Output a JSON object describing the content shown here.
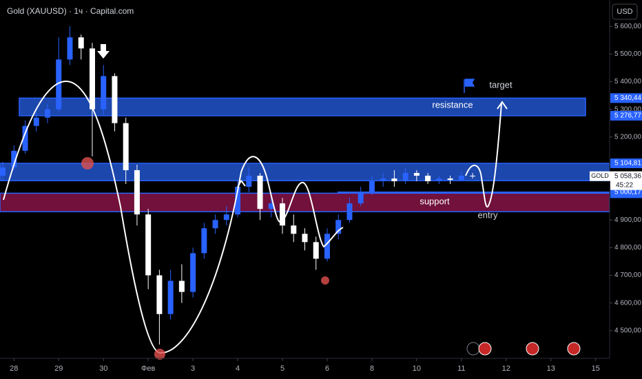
{
  "chart_data": {
    "type": "candlestick",
    "title": "Gold (XAUUSD) · 1ч · Capital.com",
    "currency": "USD",
    "symbol": "GOLD",
    "countdown": "45:22",
    "up_color": "#2962ff",
    "down_color": "#ffffff",
    "open": [
      5060,
      5090,
      5150,
      5240,
      5270,
      5300,
      5480,
      5560,
      5520,
      5300,
      5420,
      5250,
      5080,
      4920,
      4700,
      4560,
      4680,
      4640,
      4780,
      4870,
      4900,
      4920,
      5020,
      5060,
      4940,
      4960,
      4880,
      4850,
      4820,
      4760,
      4850,
      4900,
      4960,
      5000,
      5040,
      5050,
      5040,
      5070,
      5060,
      5040,
      5050,
      5045,
      5060
    ],
    "high": [
      5110,
      5170,
      5260,
      5290,
      5320,
      5560,
      5600,
      5570,
      5540,
      5460,
      5430,
      5270,
      5100,
      4940,
      4720,
      4720,
      4740,
      4800,
      4890,
      4920,
      4950,
      5040,
      5090,
      5070,
      5000,
      4980,
      4920,
      4870,
      4840,
      4870,
      4920,
      4980,
      5020,
      5060,
      5070,
      5080,
      5090,
      5080,
      5070,
      5060,
      5060,
      5075,
      5070
    ],
    "low": [
      5040,
      5080,
      5140,
      5220,
      5250,
      5290,
      5460,
      5480,
      5130,
      5280,
      5220,
      5030,
      4880,
      4650,
      4450,
      4540,
      4600,
      4620,
      4760,
      4850,
      4880,
      4910,
      5000,
      4900,
      4910,
      4850,
      4820,
      4790,
      4720,
      4750,
      4830,
      4890,
      4950,
      4990,
      5020,
      5020,
      5030,
      5040,
      5030,
      5030,
      5030,
      5040,
      5050
    ],
    "close": [
      5090,
      5150,
      5240,
      5270,
      5300,
      5480,
      5560,
      5520,
      5300,
      5420,
      5250,
      5080,
      4920,
      4700,
      4560,
      4680,
      4640,
      4780,
      4870,
      4900,
      4920,
      5020,
      5060,
      4940,
      4960,
      4880,
      4850,
      4820,
      4760,
      4850,
      4900,
      4960,
      5000,
      5040,
      5050,
      5040,
      5070,
      5060,
      5040,
      5050,
      5045,
      5060,
      5058.36
    ],
    "x": [
      -1,
      0,
      1,
      2,
      3,
      4,
      5,
      6,
      7,
      8,
      9,
      10,
      11,
      12,
      13,
      14,
      15,
      16,
      17,
      18,
      19,
      20,
      21,
      22,
      23,
      24,
      25,
      26,
      27,
      28,
      29,
      30,
      31,
      32,
      33,
      34,
      35,
      36,
      37,
      38,
      39,
      40,
      41
    ],
    "xlim": [
      -1.25,
      53.25
    ],
    "xticks": [
      {
        "value": 0,
        "label": "28"
      },
      {
        "value": 4,
        "label": "29"
      },
      {
        "value": 8,
        "label": "30"
      },
      {
        "value": 12,
        "label": "Фев"
      },
      {
        "value": 16,
        "label": "3"
      },
      {
        "value": 20,
        "label": "4"
      },
      {
        "value": 24,
        "label": "5"
      },
      {
        "value": 28,
        "label": "6"
      },
      {
        "value": 32,
        "label": "8"
      },
      {
        "value": 36,
        "label": "10"
      },
      {
        "value": 40,
        "label": "11"
      },
      {
        "value": 44,
        "label": "12"
      },
      {
        "value": 48,
        "label": "13"
      },
      {
        "value": 52,
        "label": "15"
      }
    ],
    "ylim": [
      4400,
      5695
    ],
    "yticks": [
      {
        "value": 4500,
        "label": "4 500,00"
      },
      {
        "value": 4600,
        "label": "4 600,00"
      },
      {
        "value": 4700,
        "label": "4 700,00"
      },
      {
        "value": 4800,
        "label": "4 800,00"
      },
      {
        "value": 4900,
        "label": "4 900,00"
      },
      {
        "value": 5000,
        "label": "5 000,00"
      },
      {
        "value": 5100,
        "label": "5 100,00"
      },
      {
        "value": 5200,
        "label": "5 200,00"
      },
      {
        "value": 5300,
        "label": "5 300,00"
      },
      {
        "value": 5400,
        "label": "5 400,00"
      },
      {
        "value": 5500,
        "label": "5 500,00"
      },
      {
        "value": 5600,
        "label": "5 600,00"
      }
    ],
    "last_price": {
      "value": 5058.36,
      "label": "5 058,36"
    },
    "zones": [
      {
        "name": "resistance",
        "color": "#1f4fbf",
        "top": {
          "value": 5340.44,
          "label": "5 340,44"
        },
        "bottom": {
          "value": 5276.77,
          "label": "5 276,77"
        }
      },
      {
        "color": "#1f4fbf",
        "top": {
          "value": 5104.81,
          "label": "5 104,81"
        },
        "bottom": 5042
      },
      {
        "name": "support",
        "color": "#7d1342",
        "top": {
          "value": 4996.72,
          "label": "4 996,72"
        },
        "bottom": 4930
      }
    ],
    "level": {
      "value": 5000.17,
      "label": "5 000,17",
      "color": "#2962ff"
    },
    "annotations": [
      "target",
      "entry"
    ]
  }
}
